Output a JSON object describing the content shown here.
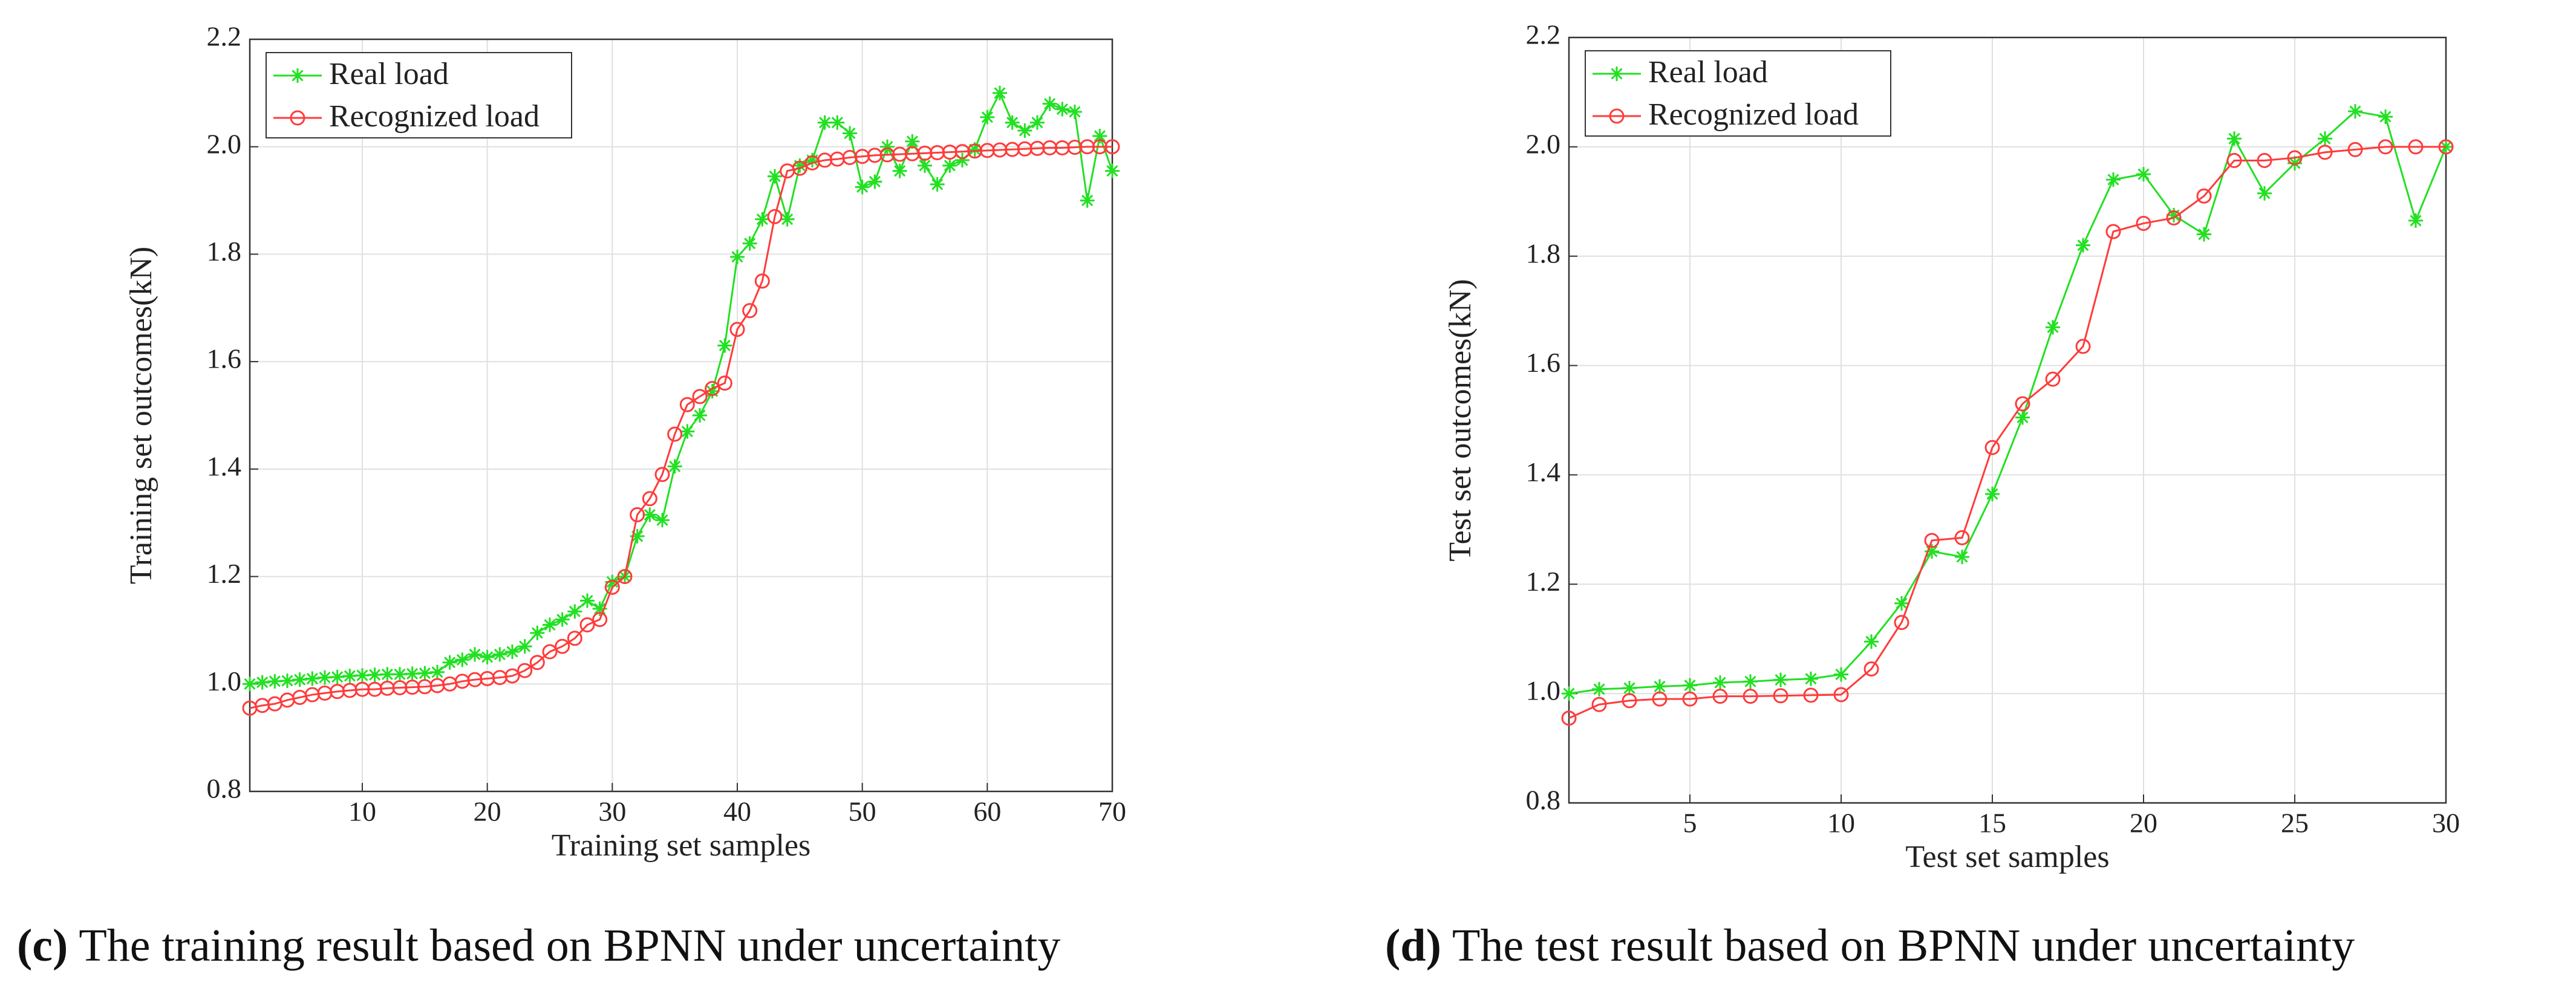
{
  "chart_data": [
    {
      "type": "line",
      "caption_label": "(c)",
      "caption": "The training result based on BPNN under uncertainty",
      "x_label": "Training set samples",
      "y_label": "Training set outcomes(kN)",
      "x": [
        1,
        2,
        3,
        4,
        5,
        6,
        7,
        8,
        9,
        10,
        11,
        12,
        13,
        14,
        15,
        16,
        17,
        18,
        19,
        20,
        21,
        22,
        23,
        24,
        25,
        26,
        27,
        28,
        29,
        30,
        31,
        32,
        33,
        34,
        35,
        36,
        37,
        38,
        39,
        40,
        41,
        42,
        43,
        44,
        45,
        46,
        47,
        48,
        49,
        50,
        51,
        52,
        53,
        54,
        55,
        56,
        57,
        58,
        59,
        60,
        61,
        62,
        63,
        64,
        65,
        66,
        67,
        68,
        69,
        70
      ],
      "xlim": [
        1,
        70
      ],
      "xticks": [
        10,
        20,
        30,
        40,
        50,
        60,
        70
      ],
      "ylim": [
        0.8,
        2.2
      ],
      "yticks": [
        0.8,
        {
          "value": 1,
          "label": "1.0"
        },
        1.2,
        1.4,
        1.6,
        1.8,
        {
          "value": 2,
          "label": "2.0"
        },
        2.2
      ],
      "grid": true,
      "legend": "upper-left",
      "series": [
        {
          "name": "Real load",
          "color": "#22e022",
          "marker": "asterisk",
          "values": [
            1.0,
            1.003,
            1.005,
            1.006,
            1.008,
            1.01,
            1.012,
            1.013,
            1.015,
            1.016,
            1.017,
            1.018,
            1.018,
            1.019,
            1.02,
            1.022,
            1.04,
            1.045,
            1.055,
            1.05,
            1.055,
            1.06,
            1.07,
            1.095,
            1.11,
            1.12,
            1.135,
            1.155,
            1.14,
            1.19,
            1.2,
            1.275,
            1.315,
            1.305,
            1.405,
            1.47,
            1.5,
            1.545,
            1.63,
            1.795,
            1.82,
            1.865,
            1.945,
            1.865,
            1.965,
            1.975,
            2.045,
            2.045,
            2.025,
            1.925,
            1.935,
            2.0,
            1.955,
            2.01,
            1.965,
            1.93,
            1.965,
            1.975,
            1.995,
            2.055,
            2.1,
            2.045,
            2.03,
            2.045,
            2.08,
            2.07,
            2.065,
            1.9,
            2.02,
            1.955
          ]
        },
        {
          "name": "Recognized load",
          "color": "#ff3b3b",
          "marker": "circle",
          "values": [
            0.955,
            0.96,
            0.963,
            0.97,
            0.975,
            0.98,
            0.983,
            0.986,
            0.988,
            0.99,
            0.99,
            0.992,
            0.993,
            0.994,
            0.995,
            0.997,
            1.0,
            1.005,
            1.008,
            1.01,
            1.012,
            1.015,
            1.025,
            1.04,
            1.06,
            1.07,
            1.085,
            1.11,
            1.12,
            1.18,
            1.2,
            1.315,
            1.345,
            1.39,
            1.465,
            1.52,
            1.535,
            1.55,
            1.56,
            1.66,
            1.695,
            1.75,
            1.87,
            1.955,
            1.96,
            1.97,
            1.975,
            1.977,
            1.98,
            1.982,
            1.984,
            1.985,
            1.986,
            1.987,
            1.988,
            1.989,
            1.99,
            1.991,
            1.992,
            1.993,
            1.994,
            1.995,
            1.996,
            1.997,
            1.998,
            1.998,
            1.999,
            2.0,
            2.0,
            2.0
          ]
        }
      ]
    },
    {
      "type": "line",
      "caption_label": "(d)",
      "caption": "The test result based on BPNN under uncertainty",
      "x_label": "Test set samples",
      "y_label": "Test set outcomes(kN)",
      "x": [
        1,
        2,
        3,
        4,
        5,
        6,
        7,
        8,
        9,
        10,
        11,
        12,
        13,
        14,
        15,
        16,
        17,
        18,
        19,
        20,
        21,
        22,
        23,
        24,
        25,
        26,
        27,
        28,
        29,
        30
      ],
      "xlim": [
        1,
        30
      ],
      "xticks": [
        5,
        10,
        15,
        20,
        25,
        30
      ],
      "ylim": [
        0.8,
        2.2
      ],
      "yticks": [
        0.8,
        {
          "value": 1,
          "label": "1.0"
        },
        1.2,
        1.4,
        1.6,
        1.8,
        {
          "value": 2,
          "label": "2.0"
        },
        2.2
      ],
      "grid": true,
      "legend": "upper-left",
      "series": [
        {
          "name": "Real load",
          "color": "#22e022",
          "marker": "asterisk",
          "values": [
            1.0,
            1.008,
            1.01,
            1.013,
            1.015,
            1.02,
            1.022,
            1.025,
            1.027,
            1.035,
            1.095,
            1.165,
            1.26,
            1.25,
            1.365,
            1.505,
            1.67,
            1.82,
            1.94,
            1.95,
            1.875,
            1.84,
            2.015,
            1.915,
            1.97,
            2.015,
            2.065,
            2.055,
            1.865,
            2.0
          ]
        },
        {
          "name": "Recognized load",
          "color": "#ff3b3b",
          "marker": "circle",
          "values": [
            0.955,
            0.98,
            0.987,
            0.99,
            0.99,
            0.995,
            0.995,
            0.996,
            0.997,
            0.998,
            1.045,
            1.13,
            1.28,
            1.285,
            1.45,
            1.53,
            1.575,
            1.635,
            1.845,
            1.86,
            1.87,
            1.91,
            1.975,
            1.975,
            1.98,
            1.99,
            1.995,
            2.0,
            2.0,
            2.0
          ]
        }
      ]
    }
  ]
}
